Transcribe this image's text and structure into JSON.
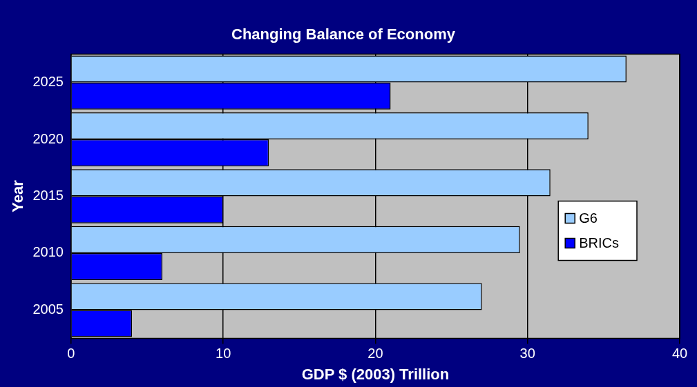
{
  "chart_data": {
    "type": "bar",
    "orientation": "horizontal",
    "title": "Changing Balance of Economy",
    "xlabel": "GDP $ (2003) Trillion",
    "ylabel": "Year",
    "categories": [
      "2025",
      "2020",
      "2015",
      "2010",
      "2005"
    ],
    "series": [
      {
        "name": "G6",
        "color": "#99ccff",
        "values": [
          36.5,
          34,
          31.5,
          29.5,
          27
        ]
      },
      {
        "name": "BRICs",
        "color": "#0000ff",
        "values": [
          21,
          13,
          10,
          6,
          4
        ]
      }
    ],
    "xlim": [
      0,
      40
    ],
    "xticks": [
      0,
      10,
      20,
      30,
      40
    ],
    "grid": "x",
    "legend": "right"
  }
}
